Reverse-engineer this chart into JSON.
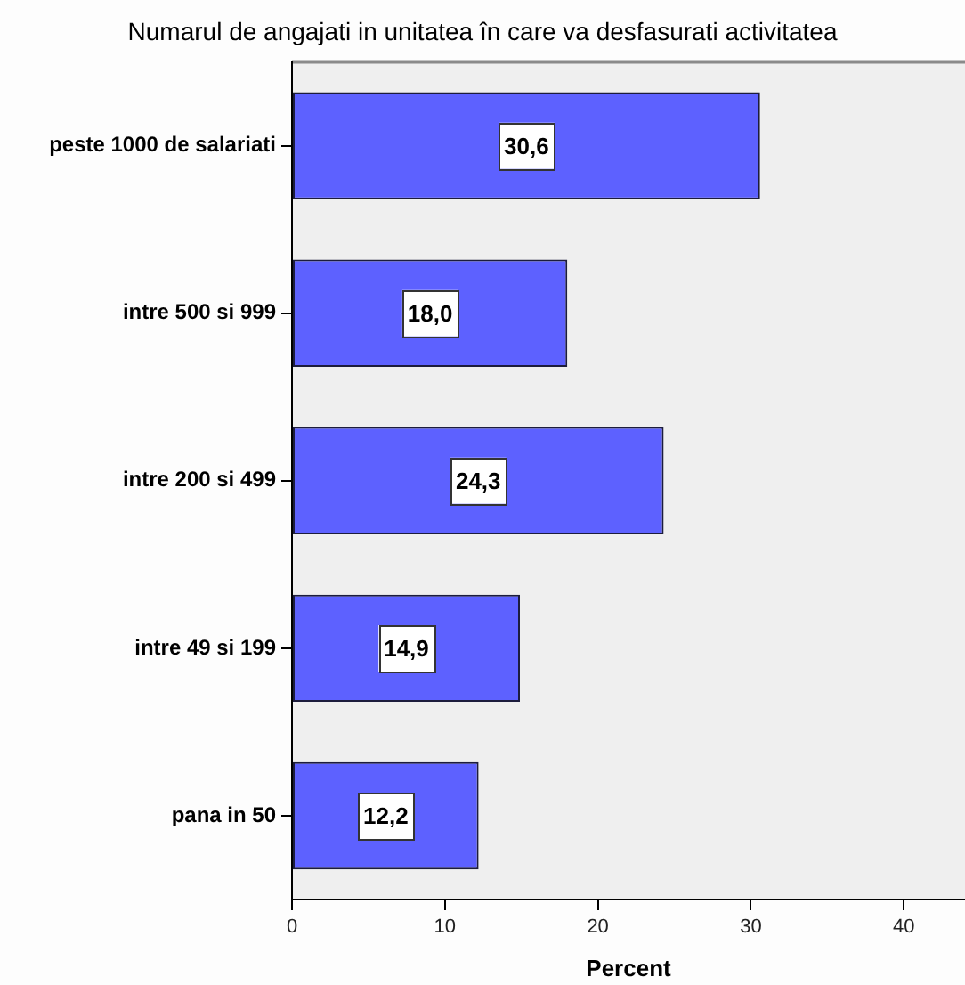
{
  "chart_data": {
    "type": "bar",
    "orientation": "horizontal",
    "title": "Numarul de angajati in unitatea în care va desfasurati activitatea",
    "xlabel": "Percent",
    "categories": [
      "peste 1000 de salariati",
      "intre 500 si 999",
      "intre 200 si 499",
      "intre 49 si 199",
      "pana in 50"
    ],
    "values": [
      30.6,
      18.0,
      24.3,
      14.9,
      12.2
    ],
    "value_labels": [
      "30,6",
      "18,0",
      "24,3",
      "14,9",
      "12,2"
    ],
    "color": "#5d61ff",
    "xlim": [
      0,
      44
    ],
    "xticks": [
      0,
      10,
      20,
      30,
      40
    ],
    "grid": false
  }
}
